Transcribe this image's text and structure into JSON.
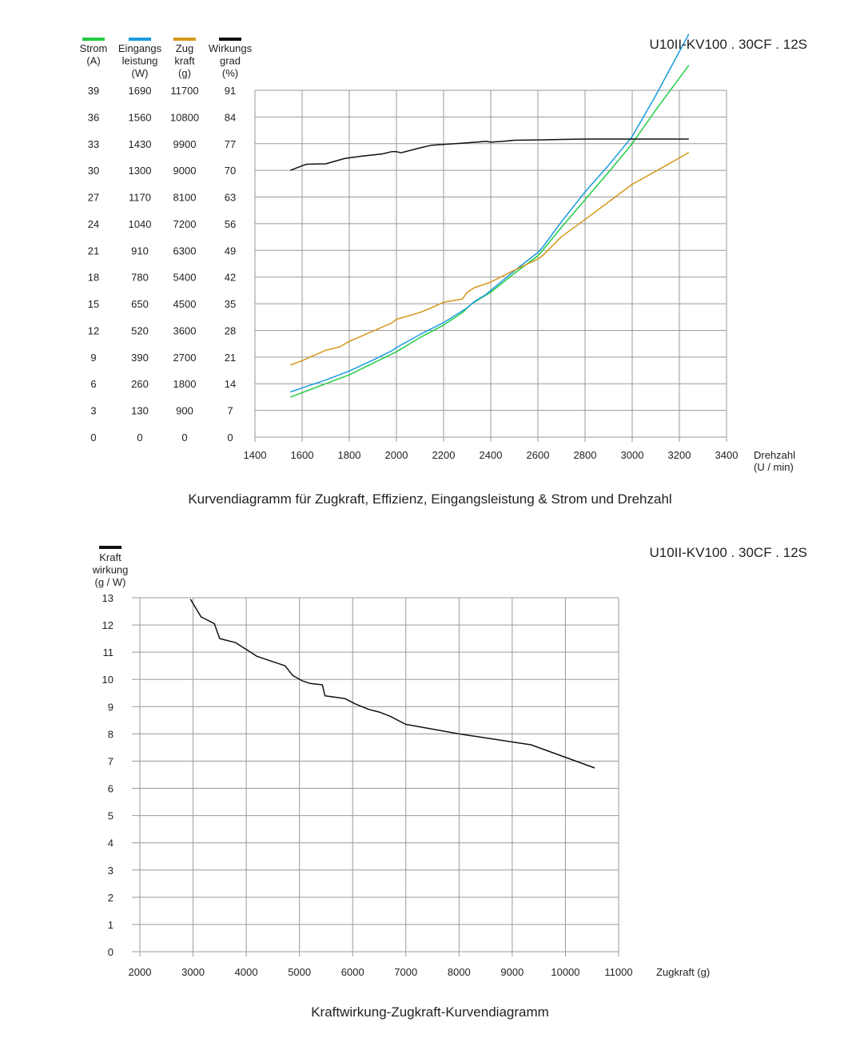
{
  "chart_data": [
    {
      "type": "line",
      "model": "U10II-KV100 . 30CF . 12S",
      "caption": "Kurvendiagramm für Zugkraft, Effizienz, Eingangsleistung &  Strom und Drehzahl",
      "xlabel": [
        "Drehzahl",
        "(U / min)"
      ],
      "xlim": [
        1400,
        3400
      ],
      "x_ticks": [
        "1400",
        "1600",
        "1800",
        "2000",
        "2200",
        "2400",
        "2600",
        "2800",
        "3000",
        "3200",
        "3400"
      ],
      "grid": true,
      "axes": [
        {
          "key": "strom",
          "label": [
            "Strom",
            "(A)"
          ],
          "color": "#22cc44",
          "max": 39,
          "ticks": [
            "0",
            "3",
            "6",
            "9",
            "12",
            "15",
            "18",
            "21",
            "24",
            "27",
            "30",
            "33",
            "36",
            "39"
          ]
        },
        {
          "key": "eingang",
          "label": [
            "Eingangs",
            "leistung",
            "(W)"
          ],
          "color": "#1a9be0",
          "max": 1690,
          "ticks": [
            "0",
            "130",
            "260",
            "390",
            "520",
            "650",
            "780",
            "910",
            "1040",
            "1170",
            "1300",
            "1430",
            "1560",
            "1690"
          ]
        },
        {
          "key": "zug",
          "label": [
            "Zug",
            "kraft",
            "(g)"
          ],
          "color": "#d4971a",
          "max": 11700,
          "ticks": [
            "0",
            "900",
            "1800",
            "2700",
            "3600",
            "4500",
            "5400",
            "6300",
            "7200",
            "8100",
            "9000",
            "9900",
            "10800",
            "11700"
          ]
        },
        {
          "key": "wirk",
          "label": [
            "Wirkungs",
            "grad",
            "(%)"
          ],
          "color": "#111111",
          "max": 91,
          "ticks": [
            "0",
            "7",
            "14",
            "21",
            "28",
            "35",
            "42",
            "49",
            "56",
            "63",
            "70",
            "77",
            "84",
            "91"
          ]
        }
      ],
      "series": [
        {
          "name": "Strom (A)",
          "axis": "strom",
          "color": "#22cc44",
          "x": [
            1550,
            1600,
            1700,
            1800,
            1900,
            2000,
            2100,
            2200,
            2280,
            2320,
            2400,
            2500,
            2600,
            2620,
            2700,
            2800,
            2900,
            3000,
            3100,
            3240
          ],
          "y": [
            4.5,
            5.0,
            6.0,
            7.0,
            8.3,
            9.6,
            11.2,
            12.6,
            14.0,
            15.0,
            16.3,
            18.4,
            20.4,
            21.0,
            23.6,
            26.7,
            29.8,
            33.0,
            36.8,
            41.8
          ]
        },
        {
          "name": "Eingangsleistung (W)",
          "axis": "eingang",
          "color": "#1a9be0",
          "x": [
            1550,
            1600,
            1700,
            1800,
            1900,
            1980,
            2000,
            2100,
            2200,
            2300,
            2330,
            2380,
            2400,
            2500,
            2600,
            2620,
            2700,
            2800,
            2900,
            3000,
            3100,
            3240
          ],
          "y": [
            220,
            240,
            278,
            322,
            375,
            420,
            436,
            500,
            558,
            630,
            660,
            695,
            715,
            810,
            900,
            925,
            1050,
            1195,
            1325,
            1465,
            1665,
            1964
          ]
        },
        {
          "name": "Zugkraft (g)",
          "axis": "zug",
          "color": "#d4971a",
          "x": [
            1550,
            1600,
            1700,
            1760,
            1800,
            1900,
            1980,
            2000,
            2100,
            2150,
            2200,
            2280,
            2300,
            2330,
            2400,
            2450,
            2500,
            2600,
            2620,
            2700,
            2800,
            2900,
            3000,
            3100,
            3240
          ],
          "y": [
            2430,
            2580,
            2930,
            3045,
            3230,
            3575,
            3850,
            3975,
            4205,
            4370,
            4550,
            4660,
            4880,
            5040,
            5230,
            5435,
            5630,
            6010,
            6120,
            6760,
            7340,
            7935,
            8530,
            8970,
            9600
          ]
        },
        {
          "name": "Wirkungsgrad (%)",
          "axis": "wirk",
          "color": "#111111",
          "x": [
            1550,
            1600,
            1620,
            1700,
            1780,
            1850,
            1940,
            1980,
            2000,
            2020,
            2100,
            2150,
            2300,
            2380,
            2400,
            2450,
            2500,
            2620,
            2700,
            2800,
            3000,
            3240
          ],
          "y": [
            70.0,
            71.2,
            71.6,
            71.7,
            73.1,
            73.7,
            74.3,
            74.9,
            74.9,
            74.6,
            75.9,
            76.6,
            77.2,
            77.6,
            77.4,
            77.6,
            77.9,
            78.0,
            78.1,
            78.2,
            78.2,
            78.2
          ]
        }
      ]
    },
    {
      "type": "line",
      "model": "U10II-KV100 . 30CF . 12S",
      "caption": "Kraftwirkung-Zugkraft-Kurvendiagramm",
      "ylabel": [
        "Kraft",
        "wirkung",
        "(g / W)"
      ],
      "xlabel": "Zugkraft (g)",
      "color": "#111111",
      "xlim": [
        2000,
        11000
      ],
      "ylim": [
        0,
        13
      ],
      "x_ticks": [
        "2000",
        "3000",
        "4000",
        "5000",
        "6000",
        "7000",
        "8000",
        "9000",
        "10000",
        "11000"
      ],
      "y_ticks": [
        "0",
        "1",
        "2",
        "3",
        "4",
        "5",
        "6",
        "7",
        "8",
        "9",
        "10",
        "11",
        "12",
        "13"
      ],
      "grid": true,
      "series": [
        {
          "name": "Kraftwirkung",
          "x": [
            2950,
            3150,
            3400,
            3500,
            3800,
            4200,
            4500,
            4730,
            4870,
            5050,
            5200,
            5430,
            5480,
            5850,
            6050,
            6300,
            6500,
            6700,
            7000,
            8000,
            9350,
            10550
          ],
          "y": [
            12.95,
            12.3,
            12.05,
            11.5,
            11.35,
            10.85,
            10.65,
            10.5,
            10.15,
            9.95,
            9.85,
            9.8,
            9.4,
            9.3,
            9.1,
            8.9,
            8.8,
            8.65,
            8.35,
            8.0,
            7.6,
            6.75
          ]
        }
      ]
    }
  ]
}
